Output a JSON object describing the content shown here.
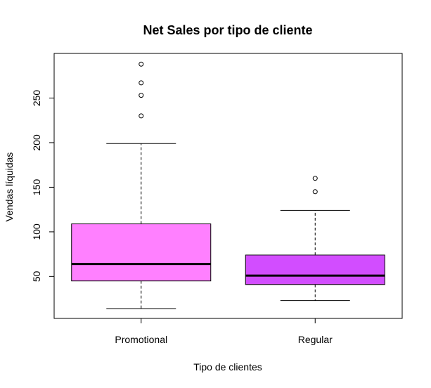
{
  "chart_data": {
    "type": "boxplot",
    "title": "Net Sales por tipo de cliente",
    "xlabel": "Tipo de clientes",
    "ylabel": "Vendas líquidas",
    "categories": [
      "Promotional",
      "Regular"
    ],
    "ylim": [
      3,
      300
    ],
    "yticks": [
      50,
      100,
      150,
      200,
      250
    ],
    "grid": false,
    "legend": "none",
    "series": [
      {
        "category": "Promotional",
        "color": "#ff80ff",
        "whisker_low": 14,
        "q1": 45,
        "median": 64,
        "q3": 109,
        "whisker_high": 199,
        "outliers": [
          230,
          253,
          267,
          288
        ]
      },
      {
        "category": "Regular",
        "color": "#d24dff",
        "whisker_low": 23,
        "q1": 41,
        "median": 51,
        "q3": 74,
        "whisker_high": 124,
        "outliers": [
          145,
          160
        ]
      }
    ]
  }
}
